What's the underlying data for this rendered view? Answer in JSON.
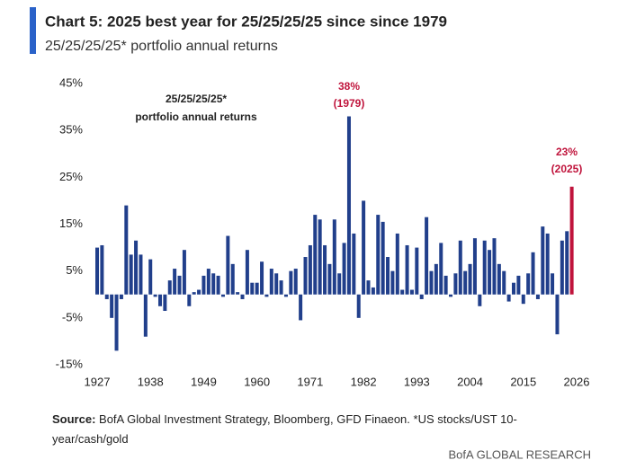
{
  "chart_data": {
    "type": "bar",
    "title": "Chart 5: 2025 best year for 25/25/25/25 since since 1979",
    "subtitle": "25/25/25/25* portfolio annual returns",
    "inner_label": [
      "25/25/25/25*",
      "portfolio annual returns"
    ],
    "annotations": [
      "38%",
      "(1979)",
      "23%",
      "(2025)"
    ],
    "x": [
      1927,
      1928,
      1929,
      1930,
      1931,
      1932,
      1933,
      1934,
      1935,
      1936,
      1937,
      1938,
      1939,
      1940,
      1941,
      1942,
      1943,
      1944,
      1945,
      1946,
      1947,
      1948,
      1949,
      1950,
      1951,
      1952,
      1953,
      1954,
      1955,
      1956,
      1957,
      1958,
      1959,
      1960,
      1961,
      1962,
      1963,
      1964,
      1965,
      1966,
      1967,
      1968,
      1969,
      1970,
      1971,
      1972,
      1973,
      1974,
      1975,
      1976,
      1977,
      1978,
      1979,
      1980,
      1981,
      1982,
      1983,
      1984,
      1985,
      1986,
      1987,
      1988,
      1989,
      1990,
      1991,
      1992,
      1993,
      1994,
      1995,
      1996,
      1997,
      1998,
      1999,
      2000,
      2001,
      2002,
      2003,
      2004,
      2005,
      2006,
      2007,
      2008,
      2009,
      2010,
      2011,
      2012,
      2013,
      2014,
      2015,
      2016,
      2017,
      2018,
      2019,
      2020,
      2021,
      2022,
      2023,
      2024,
      2025
    ],
    "values": [
      10,
      10.5,
      -1,
      -5,
      -12,
      -1,
      19,
      8.5,
      11.5,
      8.5,
      -9,
      7.5,
      -0.5,
      -2.5,
      -3.5,
      3,
      5.5,
      4,
      9.5,
      -2.5,
      0.5,
      1,
      4,
      5.5,
      4.5,
      4,
      -0.5,
      12.5,
      6.5,
      0.5,
      -1,
      9.5,
      2.5,
      2.5,
      7,
      -0.5,
      5.5,
      4.5,
      3,
      -0.5,
      5,
      5.5,
      -5.5,
      8,
      10.5,
      17,
      16,
      10.5,
      6.5,
      16,
      4.5,
      11,
      38,
      13,
      -5,
      20,
      3,
      1.5,
      17,
      15.5,
      8,
      5,
      13,
      1,
      10.5,
      1,
      10,
      -1,
      16.5,
      5,
      6.5,
      11,
      4,
      -0.5,
      4.5,
      11.5,
      5,
      6.5,
      12,
      -2.5,
      11.5,
      9.5,
      12,
      6.5,
      5,
      -1.5,
      2.5,
      4,
      -2,
      4.5,
      9,
      -1,
      14.5,
      13,
      4.5,
      -8.5,
      11.5,
      13.5,
      23
    ],
    "colors": [
      "#213f8b",
      "#213f8b",
      "#213f8b",
      "#213f8b",
      "#213f8b",
      "#213f8b",
      "#213f8b",
      "#213f8b",
      "#213f8b",
      "#213f8b",
      "#213f8b",
      "#213f8b",
      "#213f8b",
      "#213f8b",
      "#213f8b",
      "#213f8b",
      "#213f8b",
      "#213f8b",
      "#213f8b",
      "#213f8b",
      "#213f8b",
      "#213f8b",
      "#213f8b",
      "#213f8b",
      "#213f8b",
      "#213f8b",
      "#213f8b",
      "#213f8b",
      "#213f8b",
      "#213f8b",
      "#213f8b",
      "#213f8b",
      "#213f8b",
      "#213f8b",
      "#213f8b",
      "#213f8b",
      "#213f8b",
      "#213f8b",
      "#213f8b",
      "#213f8b",
      "#213f8b",
      "#213f8b",
      "#213f8b",
      "#213f8b",
      "#213f8b",
      "#213f8b",
      "#213f8b",
      "#213f8b",
      "#213f8b",
      "#213f8b",
      "#213f8b",
      "#213f8b",
      "#213f8b",
      "#213f8b",
      "#213f8b",
      "#213f8b",
      "#213f8b",
      "#213f8b",
      "#213f8b",
      "#213f8b",
      "#213f8b",
      "#213f8b",
      "#213f8b",
      "#213f8b",
      "#213f8b",
      "#213f8b",
      "#213f8b",
      "#213f8b",
      "#213f8b",
      "#213f8b",
      "#213f8b",
      "#213f8b",
      "#213f8b",
      "#213f8b",
      "#213f8b",
      "#213f8b",
      "#213f8b",
      "#213f8b",
      "#213f8b",
      "#213f8b",
      "#213f8b",
      "#213f8b",
      "#213f8b",
      "#213f8b",
      "#213f8b",
      "#213f8b",
      "#213f8b",
      "#213f8b",
      "#213f8b",
      "#213f8b",
      "#213f8b",
      "#213f8b",
      "#213f8b",
      "#213f8b",
      "#213f8b",
      "#213f8b",
      "#213f8b",
      "#213f8b",
      "#c0143c"
    ],
    "xlim": [
      1927,
      2026
    ],
    "xticks": [
      1927,
      1938,
      1949,
      1960,
      1971,
      1982,
      1993,
      2004,
      2015,
      2026
    ],
    "ylim": [
      -15,
      45
    ],
    "yticks": [
      {
        "value": -15,
        "label": "-15%"
      },
      {
        "value": -5,
        "label": "-5%"
      },
      {
        "value": 5,
        "label": "5%"
      },
      {
        "value": 15,
        "label": "15%"
      },
      {
        "value": 25,
        "label": "25%"
      },
      {
        "value": 35,
        "label": "35%"
      },
      {
        "value": 45,
        "label": "45%"
      }
    ],
    "grid": false,
    "source_label": "Source:",
    "source": "BofA Global Investment Strategy, Bloomberg, GFD Finaeon. *US stocks/UST 10-year/cash/gold",
    "credit": "BofA GLOBAL RESEARCH"
  }
}
